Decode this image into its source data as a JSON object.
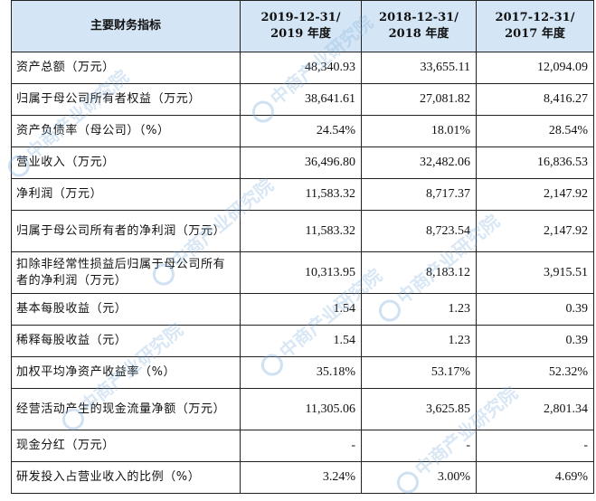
{
  "header": {
    "label": "主要财务指标",
    "cols": [
      {
        "line1": "2019-12-31/",
        "line2": "2019 年度"
      },
      {
        "line1": "2018-12-31/",
        "line2": "2018 年度"
      },
      {
        "line1": "2017-12-31/",
        "line2": "2017 年度"
      }
    ]
  },
  "rows": [
    {
      "label": "资产总额（万元）",
      "v": [
        "48,340.93",
        "33,655.11",
        "12,094.09"
      ]
    },
    {
      "label": "归属于母公司所有者权益（万元）",
      "v": [
        "38,641.61",
        "27,081.82",
        "8,416.27"
      ]
    },
    {
      "label": "资产负债率（母公司）（%）",
      "v": [
        "24.54%",
        "18.01%",
        "28.54%"
      ]
    },
    {
      "label": "营业收入（万元）",
      "v": [
        "36,496.80",
        "32,482.06",
        "16,836.53"
      ]
    },
    {
      "label": "净利润（万元）",
      "v": [
        "11,583.32",
        "8,717.37",
        "2,147.92"
      ]
    },
    {
      "label": "归属于母公司所有者的净利润（万元）",
      "v": [
        "11,583.32",
        "8,723.54",
        "2,147.92"
      ]
    },
    {
      "label": "扣除非经常性损益后归属于母公司所有者的净利润（万元）",
      "v": [
        "10,313.95",
        "8,183.12",
        "3,915.51"
      ]
    },
    {
      "label": "基本每股收益（元）",
      "v": [
        "1.54",
        "1.23",
        "0.39"
      ]
    },
    {
      "label": "稀释每股收益（元）",
      "v": [
        "1.54",
        "1.23",
        "0.39"
      ]
    },
    {
      "label": "加权平均净资产收益率（%）",
      "v": [
        "35.18%",
        "53.17%",
        "52.32%"
      ]
    },
    {
      "label": "经营活动产生的现金流量净额（万元）",
      "v": [
        "11,305.06",
        "3,625.85",
        "2,801.34"
      ]
    },
    {
      "label": "现金分红（万元）",
      "v": [
        "-",
        "-",
        "-"
      ]
    },
    {
      "label": "研发投入占营业收入的比例（%）",
      "v": [
        "3.24%",
        "3.00%",
        "4.69%"
      ]
    }
  ],
  "watermark": {
    "text": "中商产业研究院",
    "color": "#78aadc"
  }
}
